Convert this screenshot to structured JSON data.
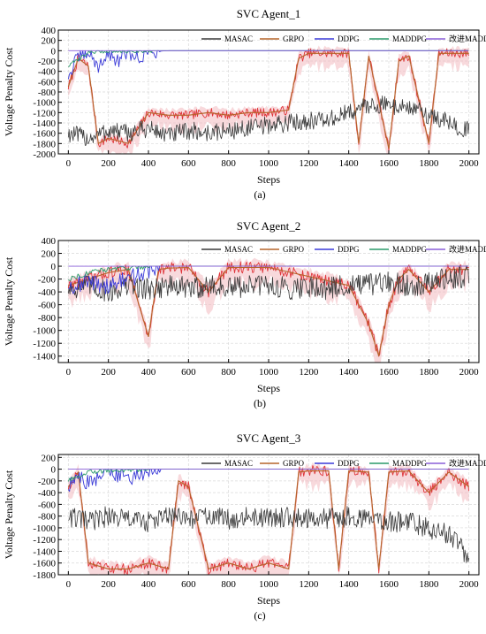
{
  "figure": {
    "panels": 3
  },
  "colors": {
    "MASAC": "#3a3a3a",
    "GRPO": "#b5652a",
    "GRPO_band": "#f3b9c0",
    "GRPO_drop": "#e0353a",
    "DDPG": "#3a3ad8",
    "MADDPG": "#2a9a6a",
    "MADDPG_improved": "#8a5fd8"
  },
  "chart_data": [
    {
      "type": "line",
      "title": "SVC Agent_1",
      "caption": "(a)",
      "xlabel": "Steps",
      "ylabel": "Voltage Penalty Cost",
      "xlim": [
        -50,
        2050
      ],
      "ylim": [
        -2000,
        400
      ],
      "xticks": [
        0,
        200,
        400,
        600,
        800,
        1000,
        1200,
        1400,
        1600,
        1800,
        2000
      ],
      "yticks": [
        400,
        200,
        0,
        -200,
        -400,
        -600,
        -800,
        -1000,
        -1200,
        -1400,
        -1600,
        -1800,
        -2000
      ],
      "grid": true,
      "legend_position": "top",
      "series": [
        {
          "name": "MASAC",
          "values": [
            [
              0,
              -1600
            ],
            [
              100,
              -1700
            ],
            [
              200,
              -1550
            ],
            [
              300,
              -1600
            ],
            [
              400,
              -1500
            ],
            [
              500,
              -1650
            ],
            [
              600,
              -1550
            ],
            [
              700,
              -1600
            ],
            [
              800,
              -1550
            ],
            [
              900,
              -1500
            ],
            [
              1000,
              -1450
            ],
            [
              1100,
              -1400
            ],
            [
              1200,
              -1350
            ],
            [
              1300,
              -1350
            ],
            [
              1400,
              -1200
            ],
            [
              1500,
              -1050
            ],
            [
              1600,
              -1050
            ],
            [
              1700,
              -1100
            ],
            [
              1800,
              -1250
            ],
            [
              1900,
              -1400
            ],
            [
              2000,
              -1550
            ]
          ]
        },
        {
          "name": "GRPO",
          "values": [
            [
              0,
              -700
            ],
            [
              50,
              -150
            ],
            [
              100,
              -300
            ],
            [
              150,
              -1800
            ],
            [
              200,
              -1700
            ],
            [
              300,
              -1800
            ],
            [
              400,
              -1200
            ],
            [
              500,
              -1250
            ],
            [
              600,
              -1250
            ],
            [
              700,
              -1200
            ],
            [
              800,
              -1250
            ],
            [
              900,
              -1200
            ],
            [
              1000,
              -1200
            ],
            [
              1100,
              -1150
            ],
            [
              1150,
              -150
            ],
            [
              1200,
              -50
            ],
            [
              1300,
              -50
            ],
            [
              1400,
              -50
            ],
            [
              1450,
              -1800
            ],
            [
              1500,
              -100
            ],
            [
              1600,
              -1900
            ],
            [
              1650,
              -200
            ],
            [
              1700,
              -100
            ],
            [
              1800,
              -1800
            ],
            [
              1850,
              -50
            ],
            [
              1900,
              -50
            ],
            [
              2000,
              -50
            ]
          ]
        },
        {
          "name": "DDPG",
          "values": [
            [
              0,
              -500
            ],
            [
              50,
              -100
            ],
            [
              100,
              -50
            ],
            [
              150,
              -300
            ],
            [
              200,
              -50
            ],
            [
              250,
              -200
            ],
            [
              300,
              -30
            ],
            [
              350,
              -150
            ],
            [
              400,
              -20
            ],
            [
              450,
              -10
            ],
            [
              500,
              0
            ],
            [
              2000,
              0
            ]
          ]
        },
        {
          "name": "MADDPG",
          "values": [
            [
              0,
              -300
            ],
            [
              100,
              -30
            ],
            [
              200,
              -10
            ],
            [
              400,
              0
            ],
            [
              2000,
              0
            ]
          ]
        },
        {
          "name": "改进MADDPG",
          "values": [
            [
              0,
              0
            ],
            [
              2000,
              0
            ]
          ]
        }
      ]
    },
    {
      "type": "line",
      "title": "SVC Agent_2",
      "caption": "(b)",
      "xlabel": "Steps",
      "ylabel": "Voltage Penalty Cost",
      "xlim": [
        -50,
        2050
      ],
      "ylim": [
        -1500,
        400
      ],
      "xticks": [
        0,
        200,
        400,
        600,
        800,
        1000,
        1200,
        1400,
        1600,
        1800,
        2000
      ],
      "yticks": [
        400,
        200,
        0,
        -200,
        -400,
        -600,
        -800,
        -1000,
        -1200,
        -1400
      ],
      "grid": true,
      "legend_position": "top",
      "series": [
        {
          "name": "MASAC",
          "values": [
            [
              0,
              -350
            ],
            [
              100,
              -300
            ],
            [
              200,
              -400
            ],
            [
              300,
              -300
            ],
            [
              400,
              -350
            ],
            [
              500,
              -300
            ],
            [
              600,
              -350
            ],
            [
              700,
              -300
            ],
            [
              800,
              -350
            ],
            [
              900,
              -300
            ],
            [
              1000,
              -300
            ],
            [
              1100,
              -350
            ],
            [
              1200,
              -300
            ],
            [
              1300,
              -350
            ],
            [
              1400,
              -300
            ],
            [
              1500,
              -300
            ],
            [
              1600,
              -250
            ],
            [
              1700,
              -300
            ],
            [
              1800,
              -250
            ],
            [
              1900,
              -200
            ],
            [
              2000,
              -150
            ]
          ]
        },
        {
          "name": "GRPO",
          "values": [
            [
              0,
              -300
            ],
            [
              100,
              -200
            ],
            [
              200,
              -100
            ],
            [
              300,
              -50
            ],
            [
              400,
              -1100
            ],
            [
              450,
              -50
            ],
            [
              500,
              -30
            ],
            [
              600,
              -20
            ],
            [
              700,
              -400
            ],
            [
              800,
              -20
            ],
            [
              1000,
              -20
            ],
            [
              1400,
              -300
            ],
            [
              1500,
              -900
            ],
            [
              1550,
              -1400
            ],
            [
              1600,
              -600
            ],
            [
              1650,
              -200
            ],
            [
              1700,
              -50
            ],
            [
              1800,
              -400
            ],
            [
              1900,
              -50
            ],
            [
              2000,
              -50
            ]
          ]
        },
        {
          "name": "DDPG",
          "values": [
            [
              0,
              -300
            ],
            [
              100,
              -250
            ],
            [
              200,
              -300
            ],
            [
              300,
              -200
            ],
            [
              400,
              -50
            ],
            [
              450,
              0
            ],
            [
              2000,
              0
            ]
          ]
        },
        {
          "name": "MADDPG",
          "values": [
            [
              0,
              -200
            ],
            [
              100,
              -100
            ],
            [
              200,
              -50
            ],
            [
              400,
              0
            ],
            [
              2000,
              0
            ]
          ]
        },
        {
          "name": "改进MADDPG",
          "values": [
            [
              0,
              0
            ],
            [
              2000,
              0
            ]
          ]
        }
      ]
    },
    {
      "type": "line",
      "title": "SVC Agent_3",
      "caption": "(c)",
      "xlabel": "Steps",
      "ylabel": "Voltage Penalty Cost",
      "xlim": [
        -50,
        2050
      ],
      "ylim": [
        -1800,
        250
      ],
      "xticks": [
        0,
        200,
        400,
        600,
        800,
        1000,
        1200,
        1400,
        1600,
        1800,
        2000
      ],
      "yticks": [
        200,
        0,
        -200,
        -400,
        -600,
        -800,
        -1000,
        -1200,
        -1400,
        -1600,
        -1800
      ],
      "grid": true,
      "legend_position": "top",
      "series": [
        {
          "name": "MASAC",
          "values": [
            [
              0,
              -800
            ],
            [
              100,
              -900
            ],
            [
              200,
              -800
            ],
            [
              300,
              -850
            ],
            [
              400,
              -900
            ],
            [
              500,
              -800
            ],
            [
              600,
              -850
            ],
            [
              700,
              -800
            ],
            [
              800,
              -850
            ],
            [
              900,
              -800
            ],
            [
              1000,
              -850
            ],
            [
              1100,
              -800
            ],
            [
              1200,
              -850
            ],
            [
              1300,
              -850
            ],
            [
              1400,
              -800
            ],
            [
              1500,
              -850
            ],
            [
              1600,
              -900
            ],
            [
              1700,
              -900
            ],
            [
              1800,
              -1000
            ],
            [
              1900,
              -1100
            ],
            [
              2000,
              -1500
            ]
          ]
        },
        {
          "name": "GRPO",
          "values": [
            [
              0,
              -300
            ],
            [
              50,
              -50
            ],
            [
              100,
              -1600
            ],
            [
              200,
              -1700
            ],
            [
              300,
              -1700
            ],
            [
              400,
              -1600
            ],
            [
              500,
              -1700
            ],
            [
              550,
              -200
            ],
            [
              600,
              -300
            ],
            [
              700,
              -1700
            ],
            [
              800,
              -1600
            ],
            [
              900,
              -1700
            ],
            [
              1000,
              -1600
            ],
            [
              1100,
              -1700
            ],
            [
              1150,
              -50
            ],
            [
              1200,
              -30
            ],
            [
              1300,
              -30
            ],
            [
              1350,
              -1700
            ],
            [
              1400,
              -30
            ],
            [
              1500,
              -50
            ],
            [
              1550,
              -1700
            ],
            [
              1600,
              -50
            ],
            [
              1700,
              -30
            ],
            [
              1800,
              -400
            ],
            [
              1900,
              -50
            ],
            [
              2000,
              -300
            ]
          ]
        },
        {
          "name": "DDPG",
          "values": [
            [
              0,
              -300
            ],
            [
              50,
              -100
            ],
            [
              100,
              -250
            ],
            [
              200,
              -50
            ],
            [
              300,
              -150
            ],
            [
              400,
              -20
            ],
            [
              450,
              0
            ],
            [
              2000,
              0
            ]
          ]
        },
        {
          "name": "MADDPG",
          "values": [
            [
              0,
              -200
            ],
            [
              100,
              -50
            ],
            [
              200,
              -20
            ],
            [
              400,
              0
            ],
            [
              2000,
              0
            ]
          ]
        },
        {
          "name": "改进MADDPG",
          "values": [
            [
              0,
              0
            ],
            [
              2000,
              0
            ]
          ]
        }
      ]
    }
  ]
}
